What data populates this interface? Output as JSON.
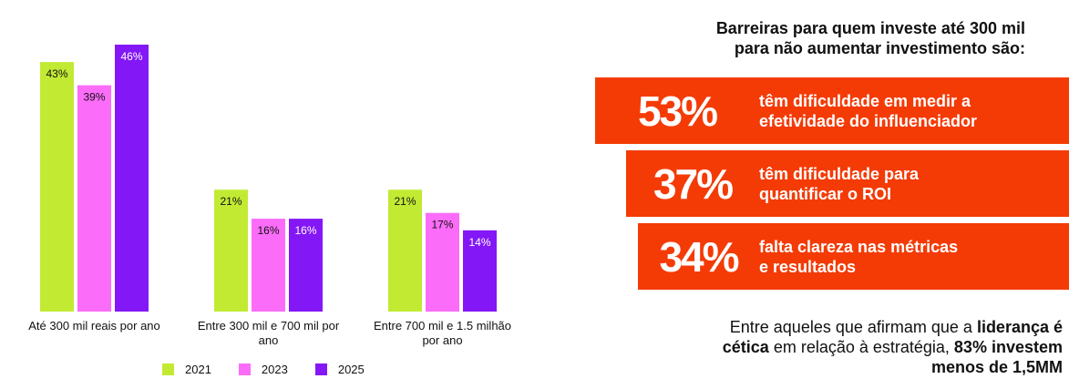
{
  "chart_data": {
    "type": "bar",
    "categories": [
      "Até 300 mil reais por ano",
      "Entre 300 mil e 700 mil por ano",
      "Entre 700 mil e 1.5 milhão por ano"
    ],
    "category_lines": [
      [
        "Até 300 mil reais por ano"
      ],
      [
        "Entre 300 mil e 700 mil por",
        "ano"
      ],
      [
        "Entre 700 mil e 1.5 milhão",
        "por ano"
      ]
    ],
    "series": [
      {
        "name": "2021",
        "color": "#c2ea33",
        "values": [
          43,
          21,
          21
        ]
      },
      {
        "name": "2023",
        "color": "#fb6cf9",
        "values": [
          39,
          16,
          17
        ]
      },
      {
        "name": "2025",
        "color": "#8417f5",
        "values": [
          46,
          16,
          14
        ]
      }
    ],
    "value_suffix": "%",
    "ylim": [
      0,
      46
    ],
    "legend_position": "bottom"
  },
  "headline": {
    "line1": "Barreiras para quem investe até 300 mil",
    "line2": "para não aumentar investimento são:"
  },
  "stats": [
    {
      "value": "53%",
      "line1": "têm dificuldade em medir a",
      "line2": "efetividade do influenciador"
    },
    {
      "value": "37%",
      "line1": "têm dificuldade para",
      "line2": "quantificar o ROI"
    },
    {
      "value": "34%",
      "line1": "falta clareza nas métricas",
      "line2": "e resultados"
    }
  ],
  "footer": {
    "part1": "Entre aqueles que afirmam que a ",
    "part2": "liderança é",
    "part3": "cética",
    "part4": " em relação à estratégia, ",
    "part5": "83% investem",
    "part6": "menos de 1,5MM"
  },
  "colors": {
    "accent": "#f43b06"
  }
}
